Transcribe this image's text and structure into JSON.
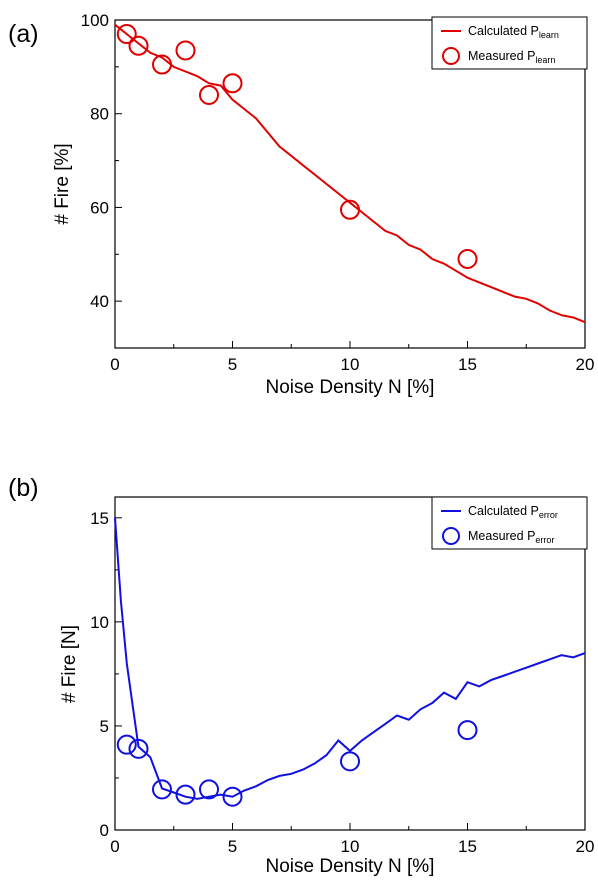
{
  "chart_data": [
    {
      "type": "line",
      "panel_label": "(a)",
      "xlabel": "Noise Density N [%]",
      "ylabel": "# Fire [%]",
      "xlim": [
        0,
        20
      ],
      "ylim": [
        30,
        100
      ],
      "xticks": [
        0,
        5,
        10,
        15,
        20
      ],
      "yticks": [
        40,
        60,
        80,
        100
      ],
      "color": "#e00000",
      "legend_position": "top-right",
      "series": [
        {
          "name": "Calculated",
          "name_sub": "learn",
          "style": "line",
          "x": [
            0,
            0.5,
            1,
            1.5,
            2,
            2.5,
            3,
            3.5,
            4,
            4.5,
            5,
            5.5,
            6,
            6.5,
            7,
            7.5,
            8,
            8.5,
            9,
            9.5,
            10,
            10.5,
            11,
            11.5,
            12,
            12.5,
            13,
            13.5,
            14,
            14.5,
            15,
            15.5,
            16,
            16.5,
            17,
            17.5,
            18,
            18.5,
            19,
            19.5,
            20
          ],
          "y": [
            99,
            97,
            95,
            93,
            92,
            90,
            89,
            88,
            86.5,
            86,
            83,
            81,
            79,
            76,
            73,
            71,
            69,
            67,
            65,
            63,
            61,
            59,
            57,
            55,
            54,
            52,
            51,
            49,
            48,
            46.5,
            45,
            44,
            43,
            42,
            41,
            40.5,
            39.5,
            38,
            37,
            36.5,
            35.5
          ]
        },
        {
          "name": "Measured",
          "name_sub": "learn",
          "style": "markers",
          "x": [
            0.5,
            1,
            2,
            3,
            4,
            5,
            10,
            15
          ],
          "y": [
            97,
            94.5,
            90.5,
            93.5,
            84,
            86.5,
            59.5,
            49
          ]
        }
      ]
    },
    {
      "type": "line",
      "panel_label": "(b)",
      "xlabel": "Noise Density N [%]",
      "ylabel": "# Fire [N]",
      "xlim": [
        0,
        20
      ],
      "ylim": [
        0,
        16
      ],
      "xticks": [
        0,
        5,
        10,
        15,
        20
      ],
      "yticks": [
        0,
        5,
        10,
        15
      ],
      "color": "#1010e0",
      "legend_position": "top-right",
      "series": [
        {
          "name": "Calculated",
          "name_sub": "error",
          "style": "line",
          "x": [
            0,
            0.25,
            0.5,
            0.75,
            1,
            1.5,
            2,
            2.5,
            3,
            3.5,
            4,
            4.5,
            5,
            5.5,
            6,
            6.5,
            7,
            7.5,
            8,
            8.5,
            9,
            9.5,
            10,
            10.5,
            11,
            11.5,
            12,
            12.5,
            13,
            13.5,
            14,
            14.5,
            15,
            15.5,
            16,
            16.5,
            17,
            17.5,
            18,
            18.5,
            19,
            19.5,
            20
          ],
          "y": [
            15,
            11,
            8,
            6,
            4,
            3.5,
            2,
            1.8,
            1.6,
            1.5,
            1.6,
            1.7,
            1.6,
            1.9,
            2.1,
            2.4,
            2.6,
            2.7,
            2.9,
            3.2,
            3.6,
            4.3,
            3.8,
            4.3,
            4.7,
            5.1,
            5.5,
            5.3,
            5.8,
            6.1,
            6.6,
            6.3,
            7.1,
            6.9,
            7.2,
            7.4,
            7.6,
            7.8,
            8.0,
            8.2,
            8.4,
            8.3,
            8.5
          ]
        },
        {
          "name": "Measured",
          "name_sub": "error",
          "style": "markers",
          "x": [
            0.5,
            1,
            2,
            3,
            4,
            5,
            10,
            15
          ],
          "y": [
            4.1,
            3.9,
            1.95,
            1.7,
            1.95,
            1.6,
            3.3,
            4.8
          ]
        }
      ]
    }
  ]
}
